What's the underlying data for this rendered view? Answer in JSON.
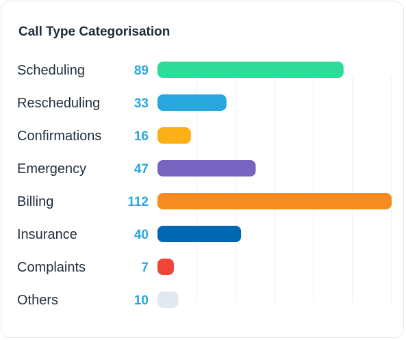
{
  "chart_data": {
    "type": "bar",
    "orientation": "horizontal",
    "title": "Call Type Categorisation",
    "xlabel": "",
    "ylabel": "",
    "xlim": [
      0,
      112
    ],
    "grid": true,
    "categories": [
      "Scheduling",
      "Rescheduling",
      "Confirmations",
      "Emergency",
      "Billing",
      "Insurance",
      "Complaints",
      "Others"
    ],
    "values": [
      89,
      33,
      16,
      47,
      112,
      40,
      7,
      10
    ],
    "colors": [
      "#2ddc98",
      "#2aa6df",
      "#fcaf17",
      "#7763c0",
      "#f68b1f",
      "#0067b3",
      "#f04438",
      "#e2e8f0"
    ]
  }
}
